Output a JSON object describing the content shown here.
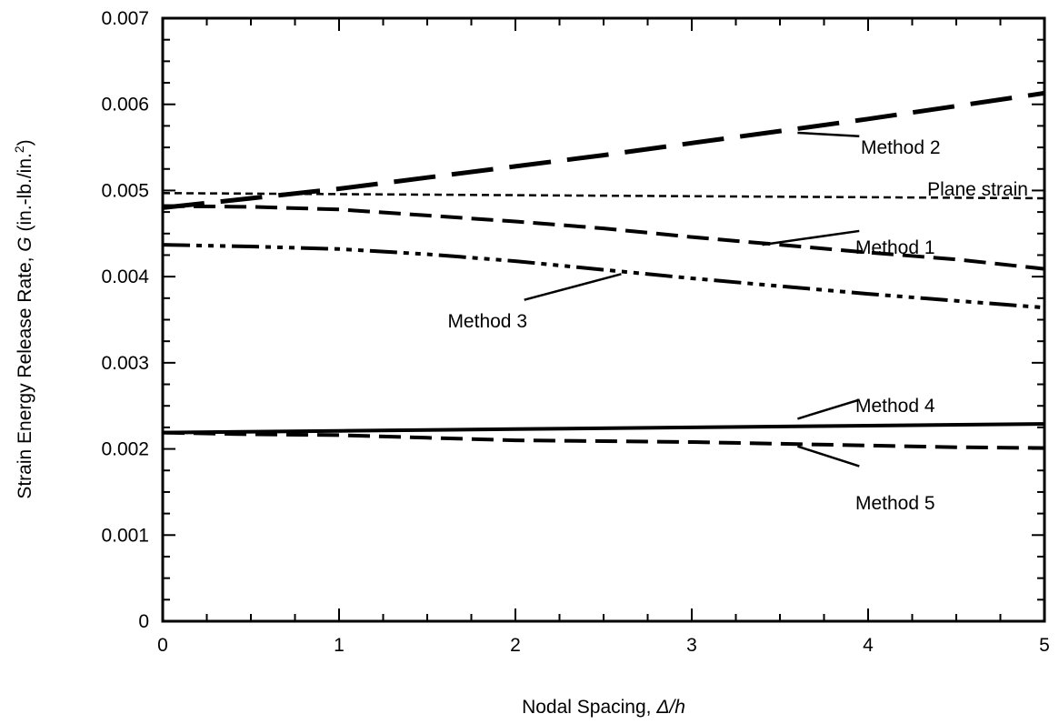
{
  "chart_data": {
    "type": "line",
    "title": "",
    "xlabel": "Nodal Spacing, Δ/h",
    "xlabel_parts": {
      "prefix": "Nodal Spacing, ",
      "italic": "Δ/h"
    },
    "ylabel": "Strain Energy Release Rate, G (in.-lb./in.2)",
    "ylabel_parts": {
      "prefix": "Strain Energy Release Rate, ",
      "italic": "G",
      "units": " (in.-lb./in.",
      "sup": "2",
      "close": ")"
    },
    "xlim": [
      0,
      5
    ],
    "ylim": [
      0,
      0.007
    ],
    "x_ticks": [
      0,
      1,
      2,
      3,
      4,
      5
    ],
    "x_tick_labels": [
      "0",
      "1",
      "2",
      "3",
      "4",
      "5"
    ],
    "y_ticks": [
      0,
      0.001,
      0.002,
      0.003,
      0.004,
      0.005,
      0.006,
      0.007
    ],
    "y_tick_labels": [
      "0",
      "0.001",
      "0.002",
      "0.003",
      "0.004",
      "0.005",
      "0.006",
      "0.007"
    ],
    "grid": false,
    "series": [
      {
        "name": "Method 2",
        "style": "long-dash",
        "x": [
          0,
          0.5,
          1,
          1.5,
          2,
          2.5,
          3,
          3.5,
          4,
          4.5,
          5
        ],
        "y": [
          0.0048,
          0.00491,
          0.00502,
          0.00515,
          0.00528,
          0.00541,
          0.00555,
          0.00569,
          0.00583,
          0.00598,
          0.00613
        ]
      },
      {
        "name": "Plane strain",
        "style": "short-dash",
        "x": [
          0,
          5
        ],
        "y": [
          0.00497,
          0.00491
        ]
      },
      {
        "name": "Method 1",
        "style": "medium-dash",
        "x": [
          0,
          0.5,
          1,
          1.5,
          2,
          2.5,
          3,
          3.5,
          4,
          4.5,
          5
        ],
        "y": [
          0.00482,
          0.00481,
          0.00478,
          0.00471,
          0.00464,
          0.00456,
          0.00446,
          0.00437,
          0.00428,
          0.0042,
          0.00409
        ]
      },
      {
        "name": "Method 3",
        "style": "dash-dot-dot",
        "x": [
          0,
          0.5,
          1,
          1.5,
          2,
          2.5,
          3,
          3.5,
          4,
          4.5,
          5
        ],
        "y": [
          0.00437,
          0.00435,
          0.00432,
          0.00426,
          0.00418,
          0.00408,
          0.00398,
          0.00389,
          0.0038,
          0.00372,
          0.00364
        ]
      },
      {
        "name": "Method 4",
        "style": "solid",
        "x": [
          0,
          1,
          2,
          3,
          4,
          5
        ],
        "y": [
          0.00219,
          0.00221,
          0.00223,
          0.00225,
          0.00227,
          0.00229
        ]
      },
      {
        "name": "Method 5",
        "style": "medium-dash",
        "x": [
          0,
          0.5,
          1,
          1.5,
          2,
          2.5,
          3,
          3.5,
          4,
          4.5,
          5
        ],
        "y": [
          0.00219,
          0.00217,
          0.00216,
          0.00213,
          0.0021,
          0.00209,
          0.00208,
          0.00206,
          0.00204,
          0.00202,
          0.00201
        ]
      }
    ],
    "annotations": [
      {
        "text": "Method 2",
        "leader_from": [
          3.6,
          0.00567
        ],
        "leader_to": [
          3.95,
          0.00563
        ]
      },
      {
        "text": "Plane strain"
      },
      {
        "text": "Method 1",
        "leader_from": [
          3.4,
          0.00437
        ],
        "leader_to": [
          3.95,
          0.00453
        ]
      },
      {
        "text": "Method 3",
        "leader_from": [
          2.05,
          0.00373
        ],
        "leader_to": [
          2.6,
          0.00403
        ]
      },
      {
        "text": "Method 4",
        "leader_from": [
          3.6,
          0.00235
        ],
        "leader_to": [
          3.95,
          0.00257
        ]
      },
      {
        "text": "Method 5",
        "leader_from": [
          3.6,
          0.00203
        ],
        "leader_to": [
          3.95,
          0.0018
        ]
      }
    ]
  }
}
